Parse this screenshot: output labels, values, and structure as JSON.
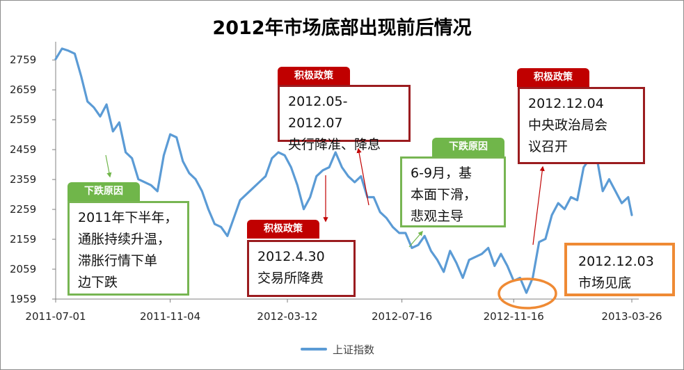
{
  "chart_data": {
    "type": "line",
    "title": "2012年市场底部出现前后情况",
    "xlabel": "",
    "ylabel": "",
    "x_ticks": [
      "2011-07-01",
      "2011-11-04",
      "2012-03-12",
      "2012-07-16",
      "2012-11-16",
      "2013-03-26"
    ],
    "y_ticks": [
      1959,
      2059,
      2159,
      2259,
      2359,
      2459,
      2559,
      2659,
      2759
    ],
    "ylim": [
      1959,
      2820
    ],
    "legend_position": "bottom",
    "series": [
      {
        "name": "上证指数",
        "color": "#5b9bd5",
        "points": [
          [
            "2011-07-01",
            2762
          ],
          [
            "2011-07-08",
            2797
          ],
          [
            "2011-07-15",
            2790
          ],
          [
            "2011-07-22",
            2780
          ],
          [
            "2011-07-29",
            2705
          ],
          [
            "2011-08-05",
            2620
          ],
          [
            "2011-08-12",
            2600
          ],
          [
            "2011-08-19",
            2570
          ],
          [
            "2011-08-26",
            2610
          ],
          [
            "2011-09-02",
            2520
          ],
          [
            "2011-09-09",
            2550
          ],
          [
            "2011-09-16",
            2450
          ],
          [
            "2011-09-23",
            2430
          ],
          [
            "2011-09-30",
            2360
          ],
          [
            "2011-10-14",
            2340
          ],
          [
            "2011-10-21",
            2320
          ],
          [
            "2011-10-28",
            2440
          ],
          [
            "2011-11-04",
            2510
          ],
          [
            "2011-11-11",
            2500
          ],
          [
            "2011-11-18",
            2420
          ],
          [
            "2011-11-25",
            2380
          ],
          [
            "2011-12-02",
            2360
          ],
          [
            "2011-12-09",
            2320
          ],
          [
            "2011-12-16",
            2260
          ],
          [
            "2011-12-23",
            2210
          ],
          [
            "2011-12-30",
            2200
          ],
          [
            "2012-01-06",
            2170
          ],
          [
            "2012-01-13",
            2230
          ],
          [
            "2012-01-20",
            2290
          ],
          [
            "2012-02-03",
            2330
          ],
          [
            "2012-02-10",
            2350
          ],
          [
            "2012-02-17",
            2370
          ],
          [
            "2012-02-24",
            2430
          ],
          [
            "2012-03-02",
            2450
          ],
          [
            "2012-03-09",
            2440
          ],
          [
            "2012-03-16",
            2400
          ],
          [
            "2012-03-23",
            2340
          ],
          [
            "2012-03-30",
            2260
          ],
          [
            "2012-04-06",
            2300
          ],
          [
            "2012-04-13",
            2370
          ],
          [
            "2012-04-20",
            2390
          ],
          [
            "2012-04-27",
            2400
          ],
          [
            "2012-05-04",
            2450
          ],
          [
            "2012-05-11",
            2400
          ],
          [
            "2012-05-18",
            2370
          ],
          [
            "2012-05-25",
            2350
          ],
          [
            "2012-06-01",
            2370
          ],
          [
            "2012-06-08",
            2300
          ],
          [
            "2012-06-15",
            2300
          ],
          [
            "2012-06-22",
            2250
          ],
          [
            "2012-06-29",
            2230
          ],
          [
            "2012-07-06",
            2200
          ],
          [
            "2012-07-13",
            2180
          ],
          [
            "2012-07-20",
            2180
          ],
          [
            "2012-07-27",
            2130
          ],
          [
            "2012-08-03",
            2140
          ],
          [
            "2012-08-10",
            2170
          ],
          [
            "2012-08-17",
            2120
          ],
          [
            "2012-08-24",
            2090
          ],
          [
            "2012-08-31",
            2050
          ],
          [
            "2012-09-07",
            2120
          ],
          [
            "2012-09-14",
            2080
          ],
          [
            "2012-09-21",
            2030
          ],
          [
            "2012-09-28",
            2090
          ],
          [
            "2012-10-12",
            2110
          ],
          [
            "2012-10-19",
            2130
          ],
          [
            "2012-10-26",
            2070
          ],
          [
            "2012-11-02",
            2110
          ],
          [
            "2012-11-09",
            2070
          ],
          [
            "2012-11-16",
            2020
          ],
          [
            "2012-11-23",
            2030
          ],
          [
            "2012-11-30",
            1980
          ],
          [
            "2012-12-07",
            2030
          ],
          [
            "2012-12-14",
            2150
          ],
          [
            "2012-12-21",
            2160
          ],
          [
            "2012-12-28",
            2240
          ],
          [
            "2013-01-04",
            2280
          ],
          [
            "2013-01-11",
            2260
          ],
          [
            "2013-01-18",
            2300
          ],
          [
            "2013-01-25",
            2290
          ],
          [
            "2013-02-01",
            2400
          ],
          [
            "2013-02-08",
            2430
          ],
          [
            "2013-02-15",
            2440
          ],
          [
            "2013-02-22",
            2320
          ],
          [
            "2013-03-01",
            2360
          ],
          [
            "2013-03-08",
            2320
          ],
          [
            "2013-03-15",
            2280
          ],
          [
            "2013-03-22",
            2300
          ],
          [
            "2013-03-26",
            2240
          ]
        ]
      }
    ],
    "annotations": [
      {
        "tag": "积极政策",
        "lines": [
          "2012.05-2012.07",
          "央行降准、降息"
        ],
        "color": "red"
      },
      {
        "tag": "积极政策",
        "lines": [
          "2012.12.04",
          "中央政治局会",
          "议召开"
        ],
        "color": "red"
      },
      {
        "tag": "积极政策",
        "lines": [
          "2012.4.30",
          "交易所降费"
        ],
        "color": "red"
      },
      {
        "tag": "下跌原因",
        "lines": [
          "2011年下半年，",
          "通胀持续升温，",
          "滞胀行情下单",
          "边下跌"
        ],
        "color": "green"
      },
      {
        "tag": "下跌原因",
        "lines": [
          "6-9月，基",
          "本面下滑，",
          "悲观主导"
        ],
        "color": "green"
      },
      {
        "tag": "",
        "lines": [
          "2012.12.03",
          "市场见底"
        ],
        "color": "orange"
      }
    ]
  }
}
